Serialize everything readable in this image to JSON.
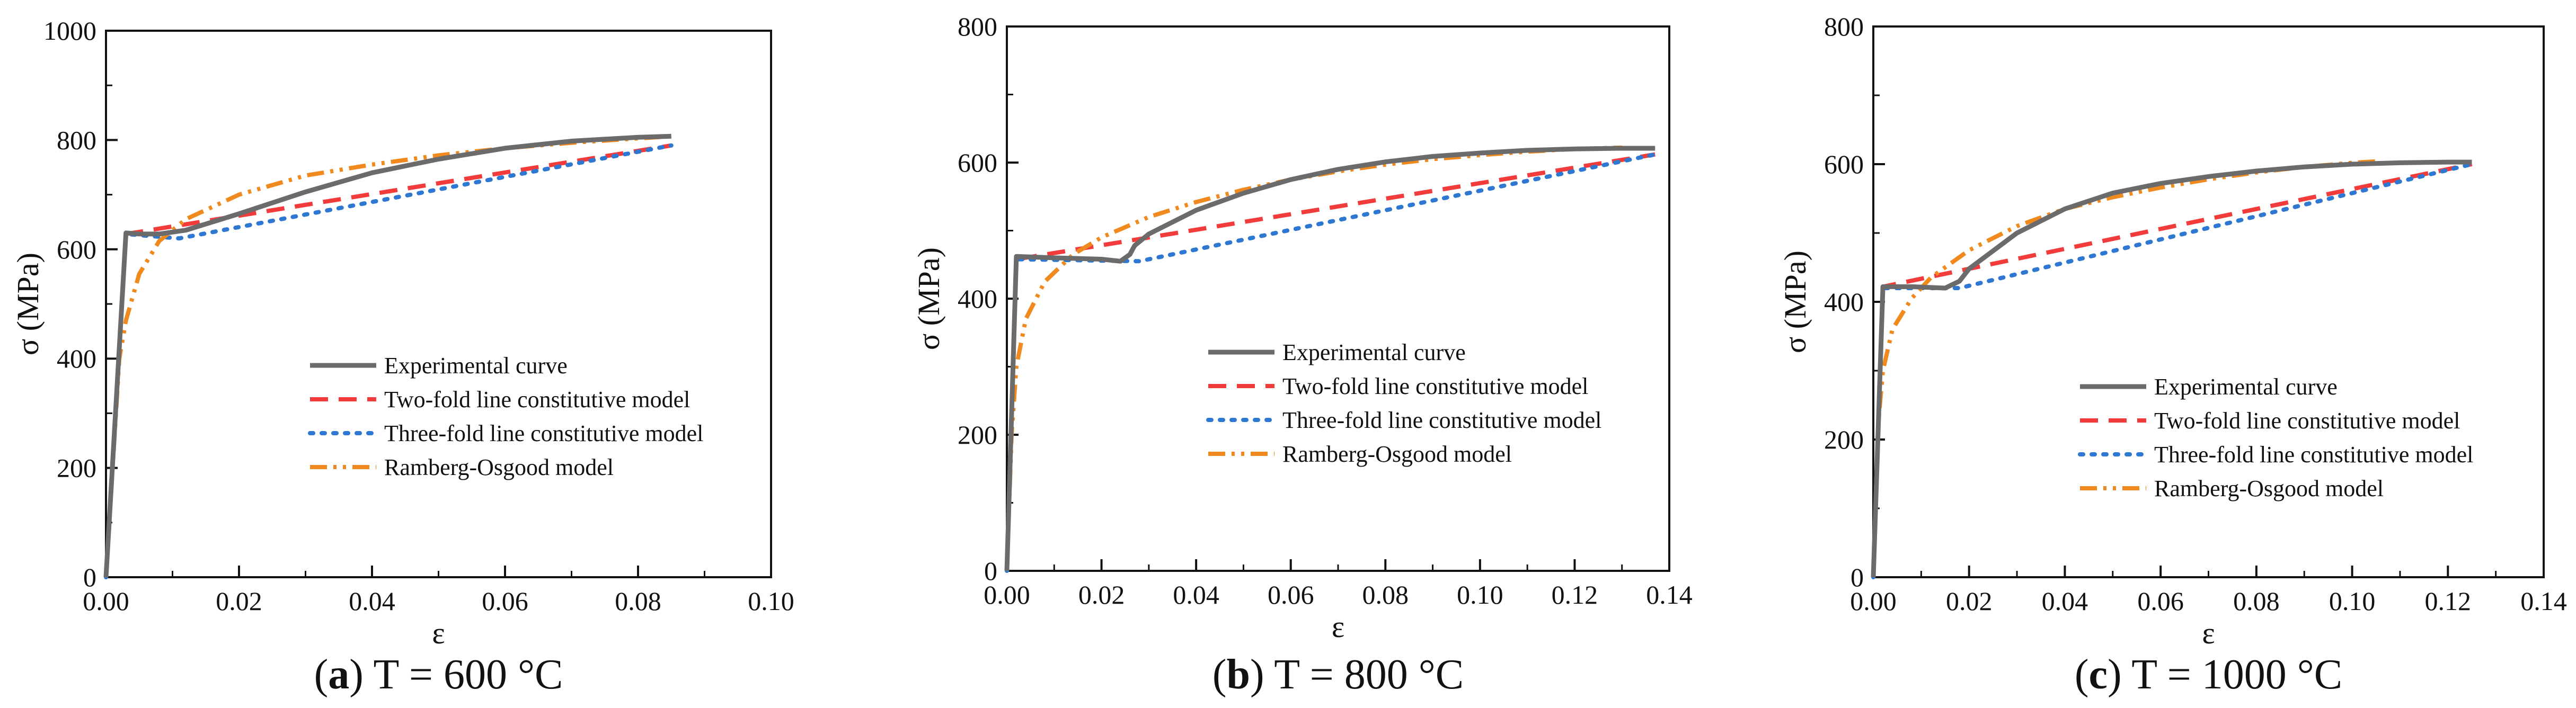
{
  "colors": {
    "experimental": "#6b6b6b",
    "two_fold": "#f23c3c",
    "three_fold": "#2f78d2",
    "ramberg": "#f08a1e",
    "axis": "#111111"
  },
  "chart_data": [
    {
      "type": "line",
      "caption_letter": "a",
      "caption_text": " T = 600 °C",
      "xlabel": "ε",
      "ylabel": "σ (MPa)",
      "xlim": [
        0,
        0.1
      ],
      "ylim": [
        0,
        1000
      ],
      "xticks": [
        0.0,
        0.02,
        0.04,
        0.06,
        0.08,
        0.1
      ],
      "xtick_labels": [
        "0.00",
        "0.02",
        "0.04",
        "0.06",
        "0.08",
        "0.10"
      ],
      "yticks": [
        0,
        200,
        400,
        600,
        800,
        1000
      ],
      "ytick_labels": [
        "0",
        "200",
        "400",
        "600",
        "800",
        "1000"
      ],
      "legend": [
        "Experimental curve",
        "Two-fold line constitutive model",
        "Three-fold line constitutive model",
        "Ramberg-Osgood model"
      ],
      "series": [
        {
          "name": "Experimental curve",
          "style": "experimental",
          "x": [
            0,
            0.003,
            0.005,
            0.008,
            0.012,
            0.02,
            0.03,
            0.04,
            0.05,
            0.06,
            0.07,
            0.08,
            0.085
          ],
          "y": [
            0,
            630,
            628,
            628,
            635,
            665,
            705,
            740,
            765,
            785,
            798,
            805,
            807
          ]
        },
        {
          "name": "Two-fold line constitutive model",
          "style": "two_fold",
          "x": [
            0,
            0.003,
            0.085
          ],
          "y": [
            0,
            628,
            790
          ]
        },
        {
          "name": "Three-fold line constitutive model",
          "style": "three_fold",
          "x": [
            0,
            0.003,
            0.011,
            0.085
          ],
          "y": [
            0,
            628,
            620,
            790
          ]
        },
        {
          "name": "Ramberg-Osgood model",
          "style": "ramberg",
          "x": [
            0,
            0.002,
            0.003,
            0.005,
            0.008,
            0.012,
            0.02,
            0.03,
            0.04,
            0.05,
            0.06,
            0.07,
            0.08,
            0.084
          ],
          "y": [
            0,
            400,
            470,
            555,
            615,
            655,
            700,
            735,
            755,
            772,
            785,
            795,
            803,
            806
          ]
        }
      ]
    },
    {
      "type": "line",
      "caption_letter": "b",
      "caption_text": " T = 800 °C",
      "xlabel": "ε",
      "ylabel": "σ (MPa)",
      "xlim": [
        0,
        0.14
      ],
      "ylim": [
        0,
        800
      ],
      "xticks": [
        0.0,
        0.02,
        0.04,
        0.06,
        0.08,
        0.1,
        0.12,
        0.14
      ],
      "xtick_labels": [
        "0.00",
        "0.02",
        "0.04",
        "0.06",
        "0.08",
        "0.10",
        "0.12",
        "0.14"
      ],
      "yticks": [
        0,
        200,
        400,
        600,
        800
      ],
      "ytick_labels": [
        "0",
        "200",
        "400",
        "600",
        "800"
      ],
      "legend": [
        "Experimental curve",
        "Two-fold line constitutive model",
        "Three-fold line constitutive model",
        "Ramberg-Osgood model"
      ],
      "series": [
        {
          "name": "Experimental curve",
          "style": "experimental",
          "x": [
            0,
            0.002,
            0.01,
            0.02,
            0.024,
            0.026,
            0.027,
            0.03,
            0.04,
            0.05,
            0.06,
            0.07,
            0.08,
            0.09,
            0.1,
            0.11,
            0.12,
            0.13,
            0.137
          ],
          "y": [
            0,
            462,
            460,
            458,
            455,
            465,
            478,
            495,
            530,
            555,
            575,
            590,
            601,
            609,
            614,
            618,
            620,
            621,
            621
          ]
        },
        {
          "name": "Two-fold line constitutive model",
          "style": "two_fold",
          "x": [
            0,
            0.002,
            0.137
          ],
          "y": [
            0,
            458,
            612
          ]
        },
        {
          "name": "Three-fold line constitutive model",
          "style": "three_fold",
          "x": [
            0,
            0.002,
            0.028,
            0.137
          ],
          "y": [
            0,
            458,
            455,
            612
          ]
        },
        {
          "name": "Ramberg-Osgood model",
          "style": "ramberg",
          "x": [
            0,
            0.001,
            0.002,
            0.004,
            0.008,
            0.014,
            0.02,
            0.03,
            0.04,
            0.05,
            0.06,
            0.07,
            0.08,
            0.09,
            0.1,
            0.11,
            0.12,
            0.13
          ],
          "y": [
            0,
            200,
            300,
            370,
            425,
            465,
            490,
            520,
            542,
            560,
            575,
            587,
            597,
            605,
            611,
            616,
            620,
            622
          ]
        }
      ]
    },
    {
      "type": "line",
      "caption_letter": "c",
      "caption_text": " T = 1000 °C",
      "xlabel": "ε",
      "ylabel": "σ (MPa)",
      "xlim": [
        0,
        0.14
      ],
      "ylim": [
        0,
        800
      ],
      "xticks": [
        0.0,
        0.02,
        0.04,
        0.06,
        0.08,
        0.1,
        0.12,
        0.14
      ],
      "xtick_labels": [
        "0.00",
        "0.02",
        "0.04",
        "0.06",
        "0.08",
        "0.10",
        "0.12",
        "0.14"
      ],
      "yticks": [
        0,
        200,
        400,
        600,
        800
      ],
      "ytick_labels": [
        "0",
        "200",
        "400",
        "600",
        "800"
      ],
      "legend": [
        "Experimental curve",
        "Two-fold line constitutive model",
        "Three-fold line constitutive model",
        "Ramberg-Osgood model"
      ],
      "series": [
        {
          "name": "Experimental curve",
          "style": "experimental",
          "x": [
            0,
            0.002,
            0.008,
            0.015,
            0.018,
            0.02,
            0.03,
            0.04,
            0.05,
            0.06,
            0.07,
            0.08,
            0.09,
            0.1,
            0.11,
            0.12,
            0.125
          ],
          "y": [
            0,
            422,
            422,
            420,
            430,
            448,
            500,
            535,
            558,
            572,
            582,
            590,
            596,
            600,
            602,
            603,
            603
          ]
        },
        {
          "name": "Two-fold line constitutive model",
          "style": "two_fold",
          "x": [
            0,
            0.002,
            0.125
          ],
          "y": [
            0,
            422,
            600
          ]
        },
        {
          "name": "Three-fold line constitutive model",
          "style": "three_fold",
          "x": [
            0,
            0.002,
            0.018,
            0.125
          ],
          "y": [
            0,
            420,
            420,
            600
          ]
        },
        {
          "name": "Ramberg-Osgood model",
          "style": "ramberg",
          "x": [
            0,
            0.001,
            0.002,
            0.004,
            0.008,
            0.012,
            0.02,
            0.03,
            0.04,
            0.05,
            0.06,
            0.07,
            0.08,
            0.09,
            0.1,
            0.105
          ],
          "y": [
            0,
            220,
            300,
            360,
            405,
            435,
            475,
            510,
            535,
            552,
            566,
            578,
            588,
            596,
            602,
            604
          ]
        }
      ]
    }
  ]
}
